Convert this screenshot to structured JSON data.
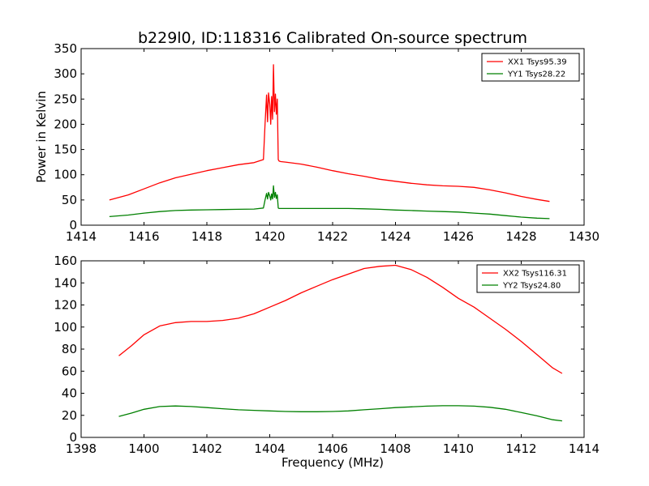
{
  "title": "b229l0, ID:118316 Calibrated On-source spectrum",
  "ylabel": "Power in Kelvin",
  "xlabel": "Frequency (MHz)",
  "chart_data": [
    {
      "type": "line",
      "title": "b229l0, ID:118316 Calibrated On-source spectrum",
      "xlabel": "",
      "ylabel": "Power in Kelvin",
      "xlim": [
        1414,
        1430
      ],
      "ylim": [
        0,
        350
      ],
      "xticks": [
        1414,
        1416,
        1418,
        1420,
        1422,
        1424,
        1426,
        1428,
        1430
      ],
      "yticks": [
        0,
        50,
        100,
        150,
        200,
        250,
        300,
        350
      ],
      "legend_position": "top-right",
      "grid": false,
      "series": [
        {
          "name": "XX1 Tsys95.39",
          "color": "#ff0000",
          "x": [
            1414.9,
            1415.5,
            1416.0,
            1416.5,
            1417.0,
            1417.5,
            1418.0,
            1418.5,
            1419.0,
            1419.5,
            1419.8,
            1419.85,
            1419.9,
            1419.93,
            1419.96,
            1420.0,
            1420.03,
            1420.06,
            1420.09,
            1420.12,
            1420.15,
            1420.18,
            1420.21,
            1420.24,
            1420.27,
            1420.3,
            1420.35,
            1420.5,
            1421.0,
            1421.5,
            1422.0,
            1422.5,
            1423.0,
            1423.5,
            1424.0,
            1424.5,
            1425.0,
            1425.5,
            1426.0,
            1426.5,
            1427.0,
            1427.5,
            1428.0,
            1428.5,
            1428.9
          ],
          "y": [
            50,
            60,
            72,
            84,
            94,
            101,
            108,
            114,
            120,
            124,
            130,
            200,
            258,
            205,
            262,
            240,
            200,
            255,
            210,
            318,
            225,
            260,
            220,
            250,
            130,
            127,
            126,
            125,
            121,
            115,
            108,
            102,
            97,
            91,
            87,
            83,
            80,
            78,
            77,
            75,
            70,
            64,
            57,
            51,
            47
          ]
        },
        {
          "name": "YY1 Tsys28.22",
          "color": "#008000",
          "x": [
            1414.9,
            1415.5,
            1416.0,
            1416.5,
            1417.0,
            1417.5,
            1418.0,
            1418.5,
            1419.0,
            1419.5,
            1419.8,
            1419.85,
            1419.9,
            1419.93,
            1419.96,
            1420.0,
            1420.03,
            1420.06,
            1420.09,
            1420.12,
            1420.15,
            1420.18,
            1420.21,
            1420.24,
            1420.27,
            1420.3,
            1420.35,
            1420.5,
            1421.0,
            1421.5,
            1422.0,
            1422.5,
            1423.0,
            1423.5,
            1424.0,
            1424.5,
            1425.0,
            1425.5,
            1426.0,
            1426.5,
            1427.0,
            1427.5,
            1428.0,
            1428.5,
            1428.9
          ],
          "y": [
            17,
            20,
            24,
            27,
            29,
            30,
            30.5,
            31,
            31.5,
            32,
            34,
            50,
            63,
            52,
            65,
            58,
            50,
            62,
            52,
            78,
            55,
            65,
            53,
            60,
            34,
            33,
            33,
            33,
            33,
            33,
            33,
            33,
            32.5,
            31.5,
            30,
            29,
            28,
            27,
            26,
            24,
            22,
            19,
            16,
            14,
            13
          ]
        }
      ]
    },
    {
      "type": "line",
      "title": "",
      "xlabel": "Frequency (MHz)",
      "ylabel": "",
      "xlim": [
        1398,
        1414
      ],
      "ylim": [
        0,
        160
      ],
      "xticks": [
        1398,
        1400,
        1402,
        1404,
        1406,
        1408,
        1410,
        1412,
        1414
      ],
      "yticks": [
        0,
        20,
        40,
        60,
        80,
        100,
        120,
        140,
        160
      ],
      "legend_position": "top-right",
      "grid": false,
      "series": [
        {
          "name": "XX2 Tsys116.31",
          "color": "#ff0000",
          "x": [
            1399.2,
            1399.6,
            1400.0,
            1400.5,
            1401.0,
            1401.5,
            1402.0,
            1402.5,
            1403.0,
            1403.5,
            1404.0,
            1404.5,
            1405.0,
            1405.5,
            1406.0,
            1406.5,
            1407.0,
            1407.5,
            1408.0,
            1408.5,
            1409.0,
            1409.5,
            1410.0,
            1410.5,
            1411.0,
            1411.5,
            1412.0,
            1412.5,
            1413.0,
            1413.3
          ],
          "y": [
            74,
            83,
            93,
            101,
            104,
            105,
            105,
            106,
            108,
            112,
            118,
            124,
            131,
            137,
            143,
            148,
            153,
            155,
            156,
            152,
            145,
            136,
            126,
            118,
            108,
            98,
            87,
            75,
            63,
            58
          ]
        },
        {
          "name": "YY2 Tsys24.80",
          "color": "#008000",
          "x": [
            1399.2,
            1399.6,
            1400.0,
            1400.5,
            1401.0,
            1401.5,
            1402.0,
            1402.5,
            1403.0,
            1403.5,
            1404.0,
            1404.5,
            1405.0,
            1405.5,
            1406.0,
            1406.5,
            1407.0,
            1407.5,
            1408.0,
            1408.5,
            1409.0,
            1409.5,
            1410.0,
            1410.5,
            1411.0,
            1411.5,
            1412.0,
            1412.5,
            1413.0,
            1413.3
          ],
          "y": [
            19,
            22,
            25.5,
            28,
            28.5,
            28,
            27,
            26,
            25,
            24.5,
            24,
            23.5,
            23.3,
            23.3,
            23.5,
            24,
            25,
            26,
            27,
            27.7,
            28.3,
            28.7,
            28.7,
            28.3,
            27.3,
            25.5,
            22.5,
            19.5,
            16,
            15
          ]
        }
      ]
    }
  ]
}
